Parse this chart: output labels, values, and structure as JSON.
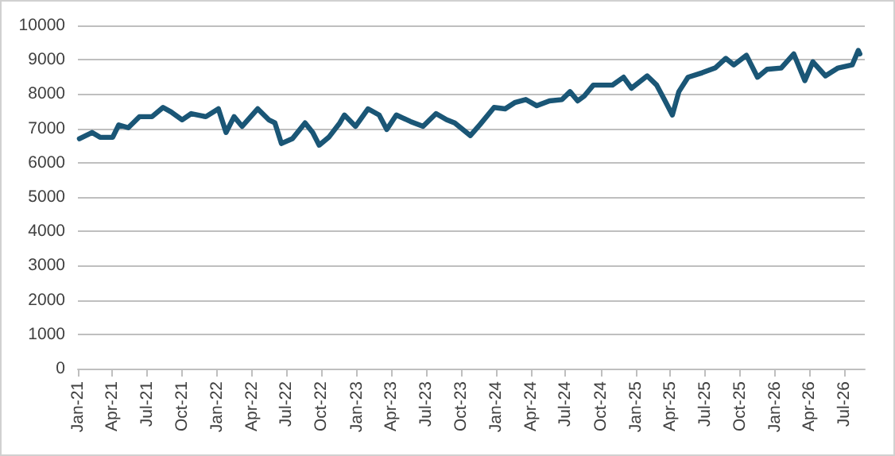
{
  "chart_data": {
    "type": "line",
    "x": [
      "2021-01-05",
      "2021-02-07",
      "2021-02-28",
      "2021-04-02",
      "2021-04-18",
      "2021-05-13",
      "2021-06-11",
      "2021-07-14",
      "2021-08-12",
      "2021-09-02",
      "2021-10-01",
      "2021-10-25",
      "2021-12-02",
      "2022-01-04",
      "2022-01-24",
      "2022-02-14",
      "2022-03-07",
      "2022-04-17",
      "2022-05-16",
      "2022-06-01",
      "2022-06-18",
      "2022-07-17",
      "2022-08-19",
      "2022-09-08",
      "2022-09-25",
      "2022-10-20",
      "2022-11-18",
      "2022-11-30",
      "2022-12-29",
      "2023-01-31",
      "2023-03-01",
      "2023-03-21",
      "2023-04-15",
      "2023-05-22",
      "2023-06-24",
      "2023-07-28",
      "2023-08-25",
      "2023-09-15",
      "2023-10-26",
      "2023-11-20",
      "2023-12-27",
      "2024-01-25",
      "2024-02-19",
      "2024-03-19",
      "2024-04-17",
      "2024-05-20",
      "2024-06-22",
      "2024-07-13",
      "2024-08-02",
      "2024-08-19",
      "2024-09-12",
      "2024-11-01",
      "2024-11-30",
      "2024-12-21",
      "2025-01-31",
      "2025-02-25",
      "2025-03-17",
      "2025-04-07",
      "2025-04-24",
      "2025-05-18",
      "2025-06-24",
      "2025-07-28",
      "2025-08-25",
      "2025-09-15",
      "2025-10-18",
      "2025-11-16",
      "2025-12-11",
      "2026-01-17",
      "2026-02-19",
      "2026-03-20",
      "2026-04-10",
      "2026-05-13",
      "2026-06-15",
      "2026-07-22",
      "2026-08-07",
      "2026-08-11"
    ],
    "series": [
      {
        "color": "#1a5676",
        "values": [
          6700,
          6880,
          6740,
          6740,
          7100,
          7020,
          7340,
          7340,
          7610,
          7480,
          7250,
          7430,
          7340,
          7570,
          6880,
          7340,
          7060,
          7570,
          7250,
          7160,
          6560,
          6700,
          7160,
          6880,
          6510,
          6740,
          7160,
          7390,
          7060,
          7570,
          7390,
          6970,
          7390,
          7200,
          7060,
          7430,
          7250,
          7160,
          6790,
          7110,
          7610,
          7570,
          7750,
          7840,
          7660,
          7800,
          7840,
          8070,
          7800,
          7940,
          8260,
          8260,
          8490,
          8170,
          8530,
          8260,
          7840,
          7390,
          8070,
          8490,
          8620,
          8760,
          9040,
          8850,
          9130,
          8490,
          8720,
          8760,
          9170,
          8390,
          8940,
          8530,
          8760,
          8850,
          9270,
          9170
        ]
      }
    ],
    "xlim": [
      "2021-01-01",
      "2026-08-24"
    ],
    "xticks": [
      {
        "value": "2021-01-01",
        "label": "Jan-21"
      },
      {
        "value": "2021-04-01",
        "label": "Apr-21"
      },
      {
        "value": "2021-07-01",
        "label": "Jul-21"
      },
      {
        "value": "2021-10-01",
        "label": "Oct-21"
      },
      {
        "value": "2022-01-01",
        "label": "Jan-22"
      },
      {
        "value": "2022-04-01",
        "label": "Apr-22"
      },
      {
        "value": "2022-07-01",
        "label": "Jul-22"
      },
      {
        "value": "2022-10-01",
        "label": "Oct-22"
      },
      {
        "value": "2023-01-01",
        "label": "Jan-23"
      },
      {
        "value": "2023-04-01",
        "label": "Apr-23"
      },
      {
        "value": "2023-07-01",
        "label": "Jul-23"
      },
      {
        "value": "2023-10-01",
        "label": "Oct-23"
      },
      {
        "value": "2024-01-01",
        "label": "Jan-24"
      },
      {
        "value": "2024-04-01",
        "label": "Apr-24"
      },
      {
        "value": "2024-07-01",
        "label": "Jul-24"
      },
      {
        "value": "2024-10-01",
        "label": "Oct-24"
      },
      {
        "value": "2025-01-01",
        "label": "Jan-25"
      },
      {
        "value": "2025-04-01",
        "label": "Apr-25"
      },
      {
        "value": "2025-07-01",
        "label": "Jul-25"
      },
      {
        "value": "2025-10-01",
        "label": "Oct-25"
      },
      {
        "value": "2026-01-01",
        "label": "Jan-26"
      },
      {
        "value": "2026-04-01",
        "label": "Apr-26"
      },
      {
        "value": "2026-07-01",
        "label": "Jul-26"
      }
    ],
    "ylim": [
      0,
      10000
    ],
    "yticks": [
      0,
      1000,
      2000,
      3000,
      4000,
      5000,
      6000,
      7000,
      8000,
      9000,
      10000
    ],
    "grid": "y",
    "marker": "none",
    "line_style": "solid"
  }
}
